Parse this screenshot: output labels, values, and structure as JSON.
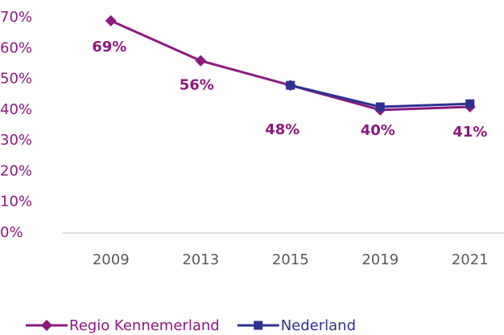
{
  "chart_data": {
    "type": "line",
    "categories": [
      "2009",
      "2013",
      "2015",
      "2019",
      "2021"
    ],
    "series": [
      {
        "name": "Regio Kennemerland",
        "color": "#8b1a7e",
        "values": [
          69,
          56,
          48,
          40,
          41
        ],
        "value_labels": [
          "69%",
          "56%",
          "48%",
          "40%",
          "41%"
        ]
      },
      {
        "name": "Nederland",
        "color": "#2e3192",
        "values": [
          null,
          null,
          48,
          41,
          42
        ]
      }
    ],
    "ylim": [
      0,
      70
    ],
    "yticks": [
      {
        "value": 0,
        "label": "0%"
      },
      {
        "value": 10,
        "label": "10%"
      },
      {
        "value": 20,
        "label": "20%"
      },
      {
        "value": 30,
        "label": "30%"
      },
      {
        "value": 40,
        "label": "40%"
      },
      {
        "value": 50,
        "label": "50%"
      },
      {
        "value": 60,
        "label": "60%"
      },
      {
        "value": 70,
        "label": "70%"
      }
    ],
    "grid": false,
    "legend": "bottom"
  }
}
